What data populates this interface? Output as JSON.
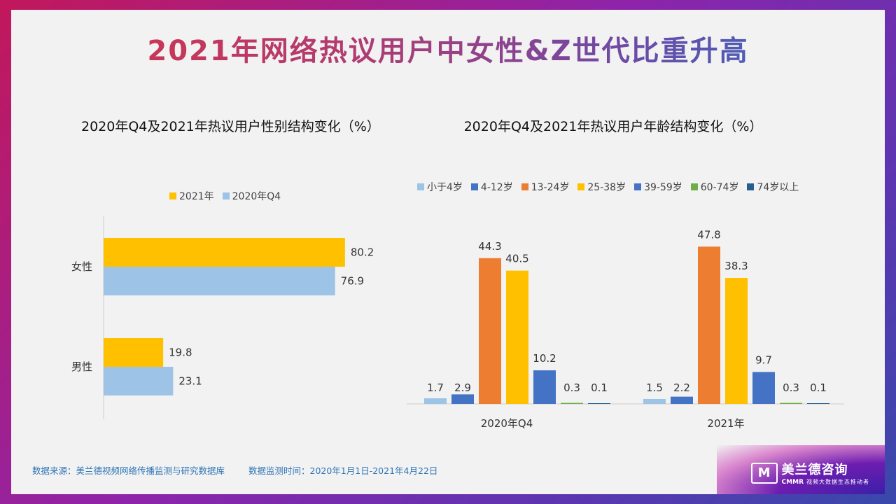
{
  "title": "2021年网络热议用户中女性&Z世代比重升高",
  "chart_data": [
    {
      "type": "bar",
      "orientation": "horizontal",
      "title": "2020年Q4及2021年热议用户性别结构变化（%）",
      "categories": [
        "女性",
        "男性"
      ],
      "series": [
        {
          "name": "2021年",
          "values": [
            80.2,
            19.8
          ],
          "color": "#ffc000"
        },
        {
          "name": "2020年Q4",
          "values": [
            76.9,
            23.1
          ],
          "color": "#9dc3e6"
        }
      ],
      "legend_position": "top"
    },
    {
      "type": "bar",
      "title": "2020年Q4及2021年热议用户年龄结构变化（%）",
      "categories": [
        "2020年Q4",
        "2021年"
      ],
      "series": [
        {
          "name": "小于4岁",
          "values": [
            1.7,
            1.5
          ],
          "color": "#9dc3e6"
        },
        {
          "name": "4-12岁",
          "values": [
            2.9,
            2.2
          ],
          "color": "#4472c4"
        },
        {
          "name": "13-24岁",
          "values": [
            44.3,
            47.8
          ],
          "color": "#ed7d31"
        },
        {
          "name": "25-38岁",
          "values": [
            40.5,
            38.3
          ],
          "color": "#ffc000"
        },
        {
          "name": "39-59岁",
          "values": [
            10.2,
            9.7
          ],
          "color": "#4472c4"
        },
        {
          "name": "60-74岁",
          "values": [
            0.3,
            0.3
          ],
          "color": "#70ad47"
        },
        {
          "name": "74岁以上",
          "values": [
            0.1,
            0.1
          ],
          "color": "#255e91"
        }
      ],
      "legend_position": "top"
    }
  ],
  "footer": {
    "source": "数据来源：美兰德视频网络传播监测与研究数据库",
    "period": "数据监测时间：2020年1月1日-2021年4月22日"
  },
  "logo": {
    "mark": "M",
    "name": "美兰德咨询",
    "abbr": "CMMR",
    "slogan": "视频大数据生态推动者"
  }
}
